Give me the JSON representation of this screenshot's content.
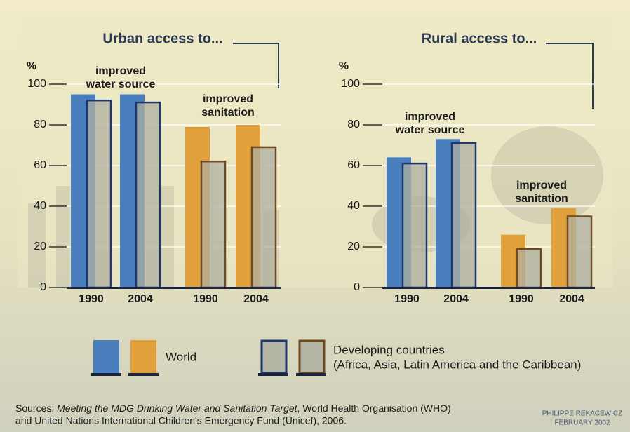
{
  "chart_data": [
    {
      "type": "bar",
      "title": "Urban access to...",
      "y_label": "%",
      "categories": [
        "1990",
        "2004",
        "1990",
        "2004"
      ],
      "groups": [
        {
          "label": [
            "improved",
            "water source"
          ]
        },
        {
          "label": [
            "improved",
            "sanitation"
          ]
        }
      ],
      "series": [
        {
          "name": "World",
          "colors": [
            "#4a7fbd",
            "#4a7fbd",
            "#e0a03c",
            "#e0a03c"
          ],
          "values": [
            95,
            95,
            79,
            80
          ]
        },
        {
          "name": "Developing countries",
          "colors": [
            "#1f3670",
            "#1f3670",
            "#6e4a24",
            "#6e4a24"
          ],
          "values": [
            92,
            91,
            62,
            69
          ]
        }
      ],
      "ylim": [
        0,
        100
      ],
      "yticks": [
        0,
        20,
        40,
        60,
        80,
        100
      ],
      "grid": true
    },
    {
      "type": "bar",
      "title": "Rural access to...",
      "y_label": "%",
      "categories": [
        "1990",
        "2004",
        "1990",
        "2004"
      ],
      "groups": [
        {
          "label": [
            "improved",
            "water source"
          ]
        },
        {
          "label": [
            "improved",
            "sanitation"
          ]
        }
      ],
      "series": [
        {
          "name": "World",
          "colors": [
            "#4a7fbd",
            "#4a7fbd",
            "#e0a03c",
            "#e0a03c"
          ],
          "values": [
            64,
            73,
            26,
            39
          ]
        },
        {
          "name": "Developing countries",
          "colors": [
            "#1f3670",
            "#1f3670",
            "#6e4a24",
            "#6e4a24"
          ],
          "values": [
            61,
            71,
            19,
            35
          ]
        }
      ],
      "ylim": [
        0,
        100
      ],
      "yticks": [
        0,
        20,
        40,
        60,
        80,
        100
      ],
      "grid": true
    }
  ],
  "legend_note": "(Africa, Asia, Latin America and the Caribbean)",
  "sources": {
    "line1": [
      "Sources: ",
      "Meeting the MDG Drinking Water and Sanitation Target",
      ", World Health Organisation (WHO)"
    ],
    "line2": "and United Nations International Children's Emergency Fund (Unicef), 2006."
  },
  "credit": [
    "PHILIPPE REKACEWICZ",
    "FEBRUARY 2002"
  ]
}
